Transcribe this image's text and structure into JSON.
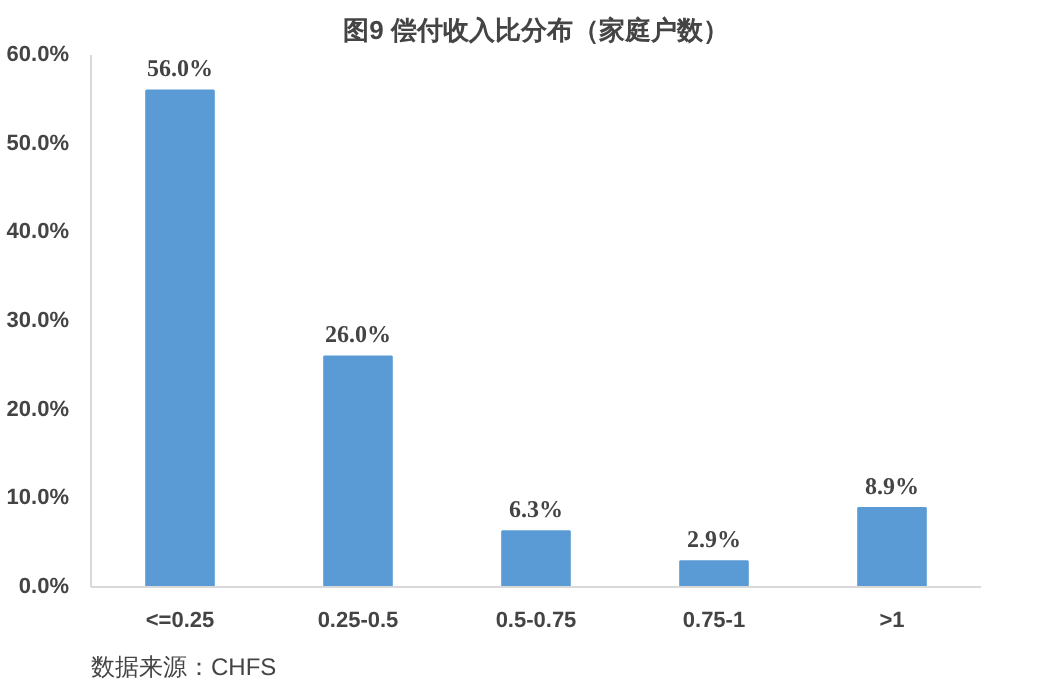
{
  "chart_data": {
    "type": "bar",
    "title": "图9 偿付收入比分布（家庭户数）",
    "categories": [
      "<=0.25",
      "0.25-0.5",
      "0.5-0.75",
      "0.75-1",
      ">1"
    ],
    "values": [
      56.0,
      26.0,
      6.3,
      2.9,
      8.9
    ],
    "value_labels": [
      "56.0%",
      "26.0%",
      "6.3%",
      "2.9%",
      "8.9%"
    ],
    "color": "#5b9bd5",
    "ylim": [
      0,
      60
    ],
    "yticks": [
      {
        "value": 0,
        "label": "0.0%"
      },
      {
        "value": 10,
        "label": "10.0%"
      },
      {
        "value": 20,
        "label": "20.0%"
      },
      {
        "value": 30,
        "label": "30.0%"
      },
      {
        "value": 40,
        "label": "40.0%"
      },
      {
        "value": 50,
        "label": "50.0%"
      },
      {
        "value": 60,
        "label": "60.0%"
      }
    ],
    "grid": false,
    "annotations": [
      "数据来源：CHFS"
    ]
  }
}
